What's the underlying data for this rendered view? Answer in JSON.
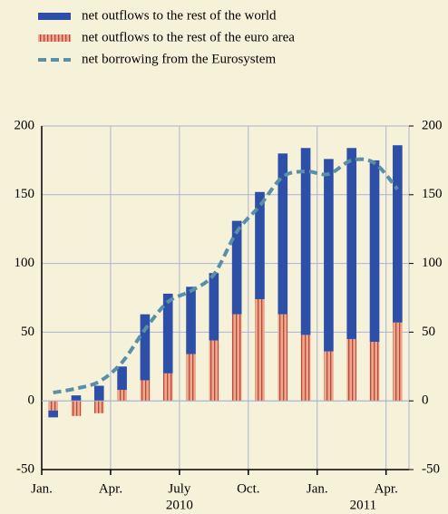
{
  "chart_data": {
    "type": "bar",
    "categories": [
      "Jan.",
      null,
      null,
      "Apr.",
      null,
      null,
      "July",
      null,
      null,
      "Oct.",
      null,
      null,
      "Jan.",
      null,
      null,
      "Apr."
    ],
    "years": [
      "2010",
      "2011"
    ],
    "series": [
      {
        "name": "net outflows to the rest of the world",
        "color": "#2e4fa8",
        "stack": true,
        "values": [
          -5,
          4,
          11,
          17,
          48,
          58,
          49,
          49,
          68,
          78,
          117,
          136,
          140,
          139,
          132,
          129
        ]
      },
      {
        "name": "net outflows to the rest of the euro area",
        "color": "#eaa98c",
        "stack": true,
        "hatch": true,
        "values": [
          -7,
          -11,
          -9,
          8,
          15,
          20,
          34,
          44,
          63,
          74,
          63,
          48,
          36,
          45,
          43,
          57
        ]
      },
      {
        "name": "net borrowing from the Eurosystem",
        "color": "#5a8fa8",
        "type": "line",
        "dashed": true,
        "values": [
          6,
          9,
          14,
          28,
          52,
          72,
          80,
          92,
          123,
          142,
          163,
          167,
          165,
          175,
          173,
          154
        ]
      }
    ],
    "ylim": [
      -50,
      200
    ],
    "yticks": [
      -50,
      0,
      50,
      100,
      150,
      200
    ],
    "y2lim": [
      -50,
      200
    ],
    "y2ticks": [
      -50,
      0,
      50,
      100,
      150,
      200
    ],
    "grid": true
  }
}
